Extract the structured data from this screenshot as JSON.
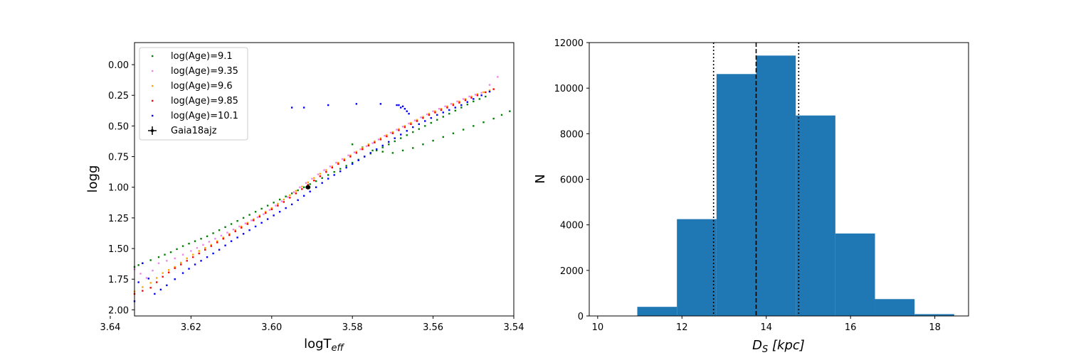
{
  "chart_data": [
    {
      "type": "scatter",
      "xlabel": "logT",
      "xlabel_sub": "eff",
      "ylabel": "logg",
      "xlim": [
        3.634,
        3.54
      ],
      "ylim": [
        2.05,
        -0.18
      ],
      "x_inverted": true,
      "y_inverted": true,
      "xticks": [
        3.64,
        3.62,
        3.6,
        3.58,
        3.56,
        3.54
      ],
      "xtick_labels": [
        "3.64",
        "3.62",
        "3.60",
        "3.58",
        "3.56",
        "3.54"
      ],
      "yticks": [
        0.0,
        0.25,
        0.5,
        0.75,
        1.0,
        1.25,
        1.5,
        1.75,
        2.0
      ],
      "ytick_labels": [
        "0.00",
        "0.25",
        "0.50",
        "0.75",
        "1.00",
        "1.25",
        "1.50",
        "1.75",
        "2.00"
      ],
      "legend_position": "top-left",
      "series": [
        {
          "name": "log(Age)=9.1",
          "color": "#008000",
          "rgb_points": [
            [
              3.634,
              1.65
            ],
            [
              3.632,
              1.62
            ],
            [
              3.628,
              1.57
            ],
            [
              3.625,
              1.53
            ],
            [
              3.622,
              1.48
            ],
            [
              3.619,
              1.44
            ],
            [
              3.616,
              1.4
            ],
            [
              3.613,
              1.35
            ],
            [
              3.61,
              1.3
            ],
            [
              3.607,
              1.25
            ],
            [
              3.604,
              1.2
            ],
            [
              3.601,
              1.15
            ],
            [
              3.598,
              1.1
            ],
            [
              3.595,
              1.05
            ],
            [
              3.592,
              1.0
            ],
            [
              3.589,
              0.95
            ],
            [
              3.586,
              0.9
            ],
            [
              3.583,
              0.85
            ],
            [
              3.58,
              0.8
            ],
            [
              3.577,
              0.75
            ],
            [
              3.574,
              0.7
            ],
            [
              3.571,
              0.65
            ],
            [
              3.568,
              0.6
            ],
            [
              3.565,
              0.55
            ],
            [
              3.562,
              0.5
            ],
            [
              3.559,
              0.45
            ],
            [
              3.556,
              0.4
            ],
            [
              3.553,
              0.35
            ],
            [
              3.55,
              0.3
            ],
            [
              3.547,
              0.26
            ]
          ],
          "rgb_branch": [
            [
              3.58,
              0.65
            ],
            [
              3.575,
              0.7
            ],
            [
              3.57,
              0.72
            ],
            [
              3.565,
              0.68
            ],
            [
              3.56,
              0.62
            ],
            [
              3.555,
              0.56
            ],
            [
              3.55,
              0.5
            ],
            [
              3.545,
              0.44
            ],
            [
              3.541,
              0.38
            ]
          ]
        },
        {
          "name": "log(Age)=9.35",
          "color": "#ee82ee",
          "rgb_points": [
            [
              3.634,
              1.67
            ],
            [
              3.631,
              1.74
            ],
            [
              3.628,
              1.62
            ],
            [
              3.624,
              1.58
            ],
            [
              3.62,
              1.52
            ],
            [
              3.617,
              1.47
            ],
            [
              3.614,
              1.42
            ],
            [
              3.611,
              1.37
            ],
            [
              3.608,
              1.32
            ],
            [
              3.605,
              1.27
            ],
            [
              3.602,
              1.22
            ],
            [
              3.599,
              1.15
            ],
            [
              3.596,
              1.08
            ],
            [
              3.593,
              1.0
            ],
            [
              3.59,
              0.93
            ],
            [
              3.587,
              0.86
            ],
            [
              3.584,
              0.8
            ],
            [
              3.581,
              0.74
            ],
            [
              3.578,
              0.69
            ],
            [
              3.575,
              0.64
            ],
            [
              3.572,
              0.58
            ],
            [
              3.569,
              0.53
            ],
            [
              3.566,
              0.48
            ],
            [
              3.563,
              0.43
            ],
            [
              3.56,
              0.38
            ],
            [
              3.557,
              0.34
            ],
            [
              3.554,
              0.3
            ],
            [
              3.551,
              0.26
            ],
            [
              3.548,
              0.23
            ],
            [
              3.544,
              0.1
            ]
          ]
        },
        {
          "name": "log(Age)=9.6",
          "color": "#ffa500",
          "rgb_points": [
            [
              3.634,
              1.85
            ],
            [
              3.63,
              1.78
            ],
            [
              3.627,
              1.7
            ],
            [
              3.624,
              1.65
            ],
            [
              3.621,
              1.58
            ],
            [
              3.618,
              1.52
            ],
            [
              3.615,
              1.47
            ],
            [
              3.612,
              1.41
            ],
            [
              3.609,
              1.35
            ],
            [
              3.606,
              1.29
            ],
            [
              3.603,
              1.23
            ],
            [
              3.6,
              1.17
            ],
            [
              3.597,
              1.1
            ],
            [
              3.594,
              1.03
            ],
            [
              3.591,
              0.96
            ],
            [
              3.588,
              0.89
            ],
            [
              3.585,
              0.83
            ],
            [
              3.582,
              0.77
            ],
            [
              3.579,
              0.71
            ],
            [
              3.576,
              0.65
            ],
            [
              3.573,
              0.6
            ],
            [
              3.57,
              0.55
            ],
            [
              3.567,
              0.5
            ],
            [
              3.564,
              0.45
            ],
            [
              3.561,
              0.4
            ],
            [
              3.558,
              0.36
            ],
            [
              3.555,
              0.32
            ],
            [
              3.552,
              0.28
            ],
            [
              3.549,
              0.24
            ],
            [
              3.546,
              0.21
            ]
          ]
        },
        {
          "name": "log(Age)=9.85",
          "color": "#ff0000",
          "rgb_points": [
            [
              3.634,
              1.87
            ],
            [
              3.63,
              1.82
            ],
            [
              3.627,
              1.73
            ],
            [
              3.624,
              1.66
            ],
            [
              3.621,
              1.6
            ],
            [
              3.618,
              1.54
            ],
            [
              3.615,
              1.48
            ],
            [
              3.612,
              1.42
            ],
            [
              3.609,
              1.36
            ],
            [
              3.606,
              1.3
            ],
            [
              3.603,
              1.24
            ],
            [
              3.6,
              1.18
            ],
            [
              3.597,
              1.12
            ],
            [
              3.594,
              1.05
            ],
            [
              3.591,
              0.98
            ],
            [
              3.588,
              0.91
            ],
            [
              3.585,
              0.84
            ],
            [
              3.582,
              0.78
            ],
            [
              3.579,
              0.72
            ],
            [
              3.576,
              0.66
            ],
            [
              3.573,
              0.61
            ],
            [
              3.57,
              0.56
            ],
            [
              3.567,
              0.51
            ],
            [
              3.564,
              0.46
            ],
            [
              3.561,
              0.41
            ],
            [
              3.558,
              0.37
            ],
            [
              3.555,
              0.33
            ],
            [
              3.552,
              0.29
            ],
            [
              3.549,
              0.25
            ],
            [
              3.545,
              0.2
            ]
          ]
        },
        {
          "name": "log(Age)=10.1",
          "color": "#0000ff",
          "rgb_points": [
            [
              3.634,
              1.93
            ],
            [
              3.632,
              1.62
            ],
            [
              3.629,
              1.87
            ],
            [
              3.626,
              1.8
            ],
            [
              3.622,
              1.7
            ],
            [
              3.619,
              1.63
            ],
            [
              3.616,
              1.57
            ],
            [
              3.613,
              1.51
            ],
            [
              3.61,
              1.44
            ],
            [
              3.607,
              1.38
            ],
            [
              3.604,
              1.32
            ],
            [
              3.601,
              1.26
            ],
            [
              3.598,
              1.2
            ],
            [
              3.595,
              1.14
            ],
            [
              3.592,
              1.07
            ],
            [
              3.589,
              1.0
            ],
            [
              3.586,
              0.93
            ],
            [
              3.583,
              0.87
            ],
            [
              3.58,
              0.81
            ],
            [
              3.577,
              0.75
            ],
            [
              3.574,
              0.69
            ],
            [
              3.571,
              0.63
            ],
            [
              3.568,
              0.57
            ],
            [
              3.565,
              0.51
            ],
            [
              3.562,
              0.46
            ],
            [
              3.559,
              0.41
            ],
            [
              3.556,
              0.37
            ],
            [
              3.553,
              0.33
            ],
            [
              3.55,
              0.28
            ],
            [
              3.546,
              0.22
            ]
          ],
          "hb_points": [
            [
              3.595,
              0.35
            ],
            [
              3.592,
              0.35
            ],
            [
              3.586,
              0.33
            ],
            [
              3.579,
              0.32
            ],
            [
              3.573,
              0.32
            ],
            [
              3.569,
              0.33
            ],
            [
              3.568,
              0.35
            ],
            [
              3.567,
              0.36
            ],
            [
              3.5665,
              0.38
            ],
            [
              3.566,
              0.4
            ],
            [
              3.5675,
              0.34
            ],
            [
              3.5685,
              0.33
            ]
          ]
        }
      ],
      "target": {
        "name": "Gaia18ajz",
        "color": "#000000",
        "logT": 3.591,
        "logg": 1.0
      }
    },
    {
      "type": "bar",
      "xlabel": "D",
      "xlabel_sub": "S",
      "xlabel_rest": " [kpc]",
      "ylabel": "N",
      "xlim": [
        9.8,
        18.8
      ],
      "ylim": [
        0,
        12000
      ],
      "xticks": [
        10,
        12,
        14,
        16,
        18
      ],
      "xtick_labels": [
        "10",
        "12",
        "14",
        "16",
        "18"
      ],
      "yticks": [
        0,
        2000,
        4000,
        6000,
        8000,
        10000,
        12000
      ],
      "ytick_labels": [
        "0",
        "2000",
        "4000",
        "6000",
        "8000",
        "10000",
        "12000"
      ],
      "bar_color": "#1f77b4",
      "bins": [
        {
          "x0": 10.0,
          "x1": 10.94,
          "count": 0
        },
        {
          "x0": 10.94,
          "x1": 11.88,
          "count": 400
        },
        {
          "x0": 11.88,
          "x1": 12.82,
          "count": 4250
        },
        {
          "x0": 12.82,
          "x1": 13.76,
          "count": 10620
        },
        {
          "x0": 13.76,
          "x1": 14.7,
          "count": 11430
        },
        {
          "x0": 14.7,
          "x1": 15.64,
          "count": 8800
        },
        {
          "x0": 15.64,
          "x1": 16.58,
          "count": 3620
        },
        {
          "x0": 16.58,
          "x1": 17.52,
          "count": 740
        },
        {
          "x0": 17.52,
          "x1": 18.46,
          "count": 80
        }
      ],
      "median": 13.76,
      "lower": 12.75,
      "upper": 14.77
    }
  ]
}
